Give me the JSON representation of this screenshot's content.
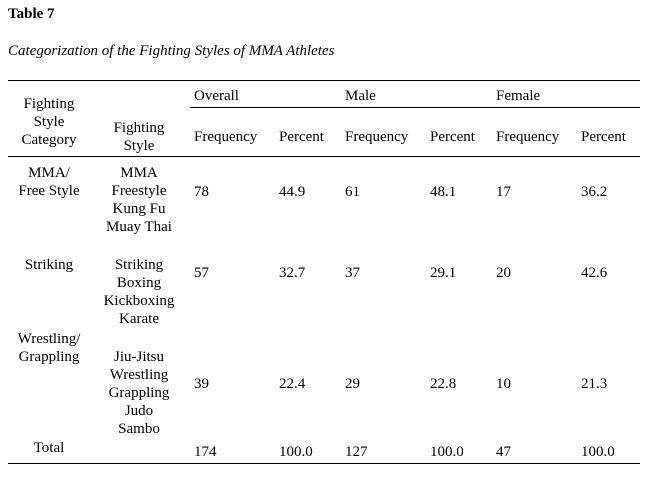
{
  "table_number": "Table 7",
  "caption": "Categorization of the Fighting Styles of MMA Athletes",
  "headers": {
    "category": [
      "Fighting",
      "Style",
      "Category"
    ],
    "style": [
      "Fighting",
      "Style"
    ],
    "groups": [
      "Overall",
      "Male",
      "Female"
    ],
    "subcols": [
      "Frequency",
      "Percent",
      "Frequency",
      "Percent",
      "Frequency",
      "Percent"
    ]
  },
  "rows": [
    {
      "category": [
        "MMA/",
        "Free Style"
      ],
      "styles": [
        "MMA",
        "Freestyle",
        "Kung Fu",
        "Muay Thai"
      ],
      "values": [
        "78",
        "44.9",
        "61",
        "48.1",
        "17",
        "36.2"
      ]
    },
    {
      "category": [
        "Striking"
      ],
      "styles": [
        "Striking",
        "Boxing",
        "Kickboxing",
        "Karate"
      ],
      "values": [
        "57",
        "32.7",
        "37",
        "29.1",
        "20",
        "42.6"
      ]
    },
    {
      "category": [
        "Wrestling/",
        "Grappling"
      ],
      "styles": [
        "Jiu-Jitsu",
        "Wrestling",
        "Grappling",
        "Judo",
        "Sambo"
      ],
      "values": [
        "39",
        "22.4",
        "29",
        "22.8",
        "10",
        "21.3"
      ]
    }
  ],
  "total": {
    "label": "Total",
    "values": [
      "174",
      "100.0",
      "127",
      "100.0",
      "47",
      "100.0"
    ]
  }
}
